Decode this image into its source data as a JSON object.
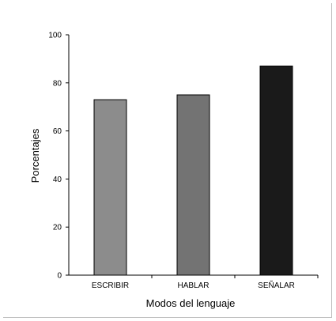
{
  "chart_data": {
    "type": "bar",
    "categories": [
      "ESCRIBIR",
      "HABLAR",
      "SEÑALAR"
    ],
    "values": [
      73,
      75,
      87
    ],
    "colors": [
      "#8c8c8c",
      "#737373",
      "#1a1a1a"
    ],
    "xlabel": "Modos del lenguaje",
    "ylabel": "Porcentajes",
    "ylim": [
      0,
      100
    ],
    "yticks": [
      "0",
      "20",
      "40",
      "60",
      "80",
      "100"
    ],
    "grid": false
  }
}
